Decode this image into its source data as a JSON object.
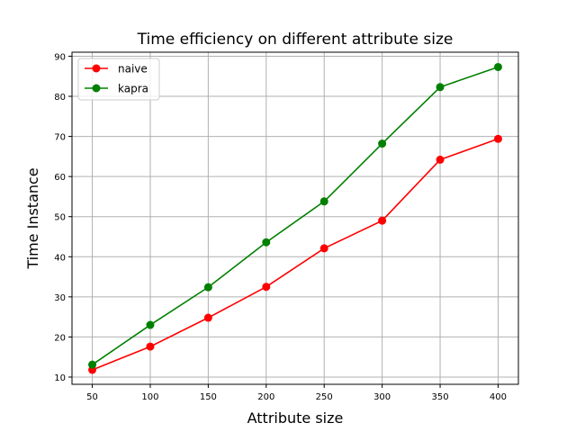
{
  "chart_data": {
    "type": "line",
    "title": "Time efficiency on different attribute size",
    "xlabel": "Attribute size",
    "ylabel": "Time Instance",
    "x": [
      50,
      100,
      150,
      200,
      250,
      300,
      350,
      400
    ],
    "xlim": [
      32.5,
      417.5
    ],
    "ylim": [
      8.2,
      91.0
    ],
    "xticks": [
      50,
      100,
      150,
      200,
      250,
      300,
      350,
      400
    ],
    "yticks": [
      10,
      20,
      30,
      40,
      50,
      60,
      70,
      80,
      90
    ],
    "grid": true,
    "legend_position": "top-left",
    "series": [
      {
        "name": "naive",
        "color": "#ff0000",
        "values": [
          11.8,
          17.6,
          24.8,
          32.5,
          42.1,
          49.0,
          64.2,
          69.4
        ]
      },
      {
        "name": "kapra",
        "color": "#008000",
        "values": [
          13.1,
          23.0,
          32.4,
          43.6,
          53.8,
          68.2,
          82.3,
          87.3
        ]
      }
    ]
  }
}
